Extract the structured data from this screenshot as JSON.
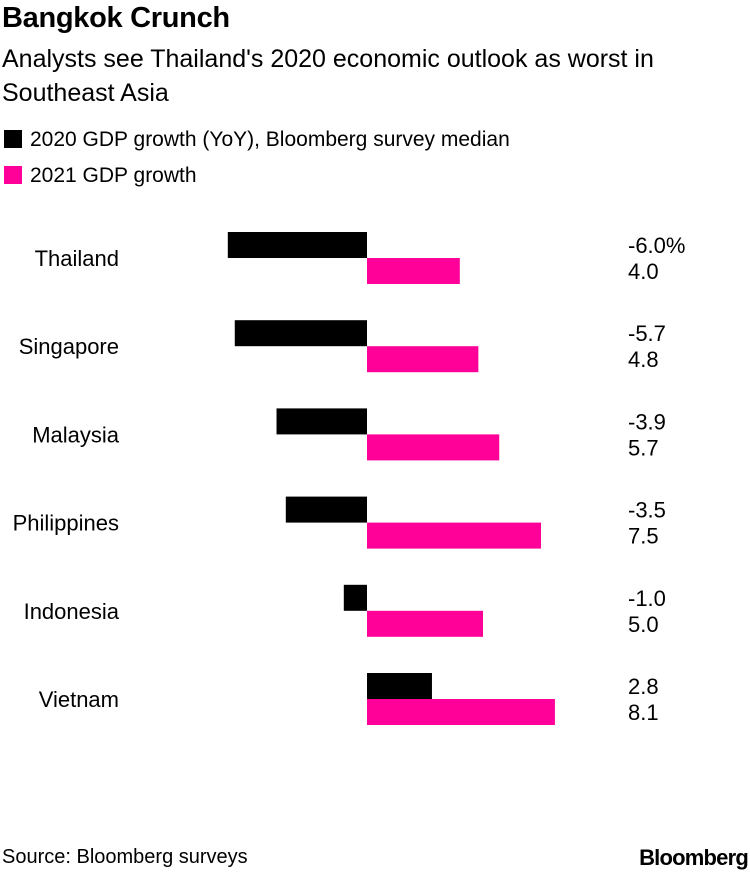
{
  "title": "Bangkok Crunch",
  "subtitle": "Analysts see Thailand's 2020 economic outlook as worst in Southeast Asia",
  "source": "Source: Bloomberg surveys",
  "brand": "Bloomberg",
  "colors": {
    "series_2020": "#000000",
    "series_2021": "#ff0099"
  },
  "chart_data": {
    "type": "bar",
    "orientation": "horizontal",
    "categories": [
      "Thailand",
      "Singapore",
      "Malaysia",
      "Philippines",
      "Indonesia",
      "Vietnam"
    ],
    "series": [
      {
        "name": "2020 GDP growth (YoY), Bloomberg survey median",
        "values": [
          -6.0,
          -5.7,
          -3.9,
          -3.5,
          -1.0,
          2.8
        ],
        "labels": [
          "-6.0%",
          "-5.7",
          "-3.9",
          "-3.5",
          "-1.0",
          "2.8"
        ],
        "color": "#000000"
      },
      {
        "name": "2021 GDP growth",
        "values": [
          4.0,
          4.8,
          5.7,
          7.5,
          5.0,
          8.1
        ],
        "labels": [
          "4.0",
          "4.8",
          "5.7",
          "7.5",
          "5.0",
          "8.1"
        ],
        "color": "#ff0099"
      }
    ],
    "xlim": [
      -6.0,
      8.1
    ],
    "grid": false,
    "legend_position": "top-left"
  }
}
